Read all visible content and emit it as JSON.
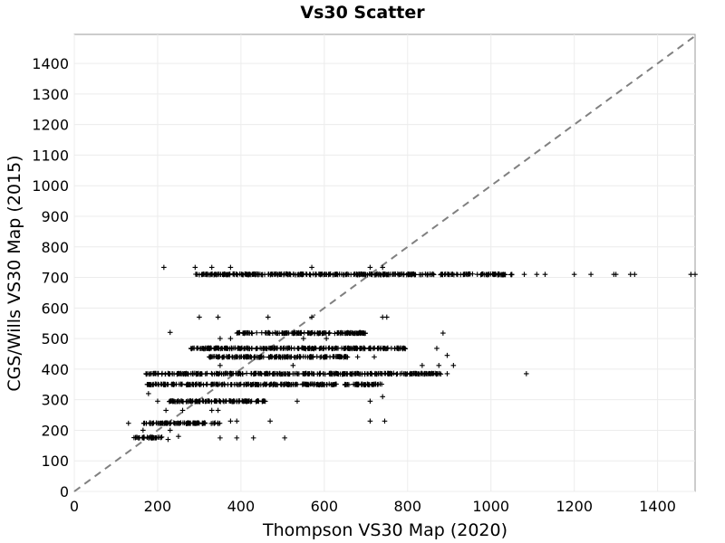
{
  "chart_data": {
    "type": "scatter",
    "title": "Vs30 Scatter",
    "xlabel": "Thompson VS30 Map (2020)",
    "ylabel": "CGS/Wills VS30 Map (2015)",
    "xlim": [
      0,
      1490
    ],
    "ylim": [
      0,
      1495
    ],
    "xticks": [
      0,
      200,
      400,
      600,
      800,
      1000,
      1200,
      1400
    ],
    "yticks": [
      0,
      100,
      200,
      300,
      400,
      500,
      600,
      700,
      800,
      900,
      1000,
      1100,
      1200,
      1300,
      1400
    ],
    "grid": true,
    "marker": "+",
    "reference_line": "1:1 dashed",
    "bands": [
      {
        "y": 176,
        "x_from": 135,
        "x_to": 210
      },
      {
        "y": 223,
        "x_from": 165,
        "x_to": 350
      },
      {
        "y": 295,
        "x_from": 225,
        "x_to": 460
      },
      {
        "y": 350,
        "x_from": 175,
        "x_to": 740
      },
      {
        "y": 385,
        "x_from": 170,
        "x_to": 880
      },
      {
        "y": 440,
        "x_from": 320,
        "x_to": 660
      },
      {
        "y": 468,
        "x_from": 280,
        "x_to": 800
      },
      {
        "y": 518,
        "x_from": 385,
        "x_to": 700
      },
      {
        "y": 710,
        "x_from": 290,
        "x_to": 1050
      }
    ],
    "points": [
      [
        215,
        733
      ],
      [
        290,
        733
      ],
      [
        330,
        733
      ],
      [
        375,
        733
      ],
      [
        570,
        733
      ],
      [
        710,
        733
      ],
      [
        740,
        733
      ],
      [
        1050,
        710
      ],
      [
        1080,
        710
      ],
      [
        1110,
        710
      ],
      [
        1130,
        710
      ],
      [
        1200,
        710
      ],
      [
        1240,
        710
      ],
      [
        1295,
        710
      ],
      [
        1300,
        710
      ],
      [
        1335,
        710
      ],
      [
        1345,
        710
      ],
      [
        1480,
        710
      ],
      [
        1490,
        710
      ],
      [
        300,
        570
      ],
      [
        345,
        570
      ],
      [
        465,
        570
      ],
      [
        570,
        570
      ],
      [
        740,
        570
      ],
      [
        750,
        570
      ],
      [
        230,
        520
      ],
      [
        885,
        518
      ],
      [
        350,
        500
      ],
      [
        375,
        500
      ],
      [
        550,
        500
      ],
      [
        605,
        500
      ],
      [
        350,
        412
      ],
      [
        525,
        412
      ],
      [
        835,
        412
      ],
      [
        875,
        412
      ],
      [
        910,
        412
      ],
      [
        1085,
        385
      ],
      [
        870,
        468
      ],
      [
        895,
        445
      ],
      [
        680,
        440
      ],
      [
        720,
        440
      ],
      [
        870,
        385
      ],
      [
        895,
        385
      ],
      [
        860,
        385
      ],
      [
        200,
        295
      ],
      [
        220,
        265
      ],
      [
        260,
        265
      ],
      [
        330,
        265
      ],
      [
        345,
        265
      ],
      [
        535,
        295
      ],
      [
        710,
        295
      ],
      [
        740,
        310
      ],
      [
        130,
        223
      ],
      [
        165,
        200
      ],
      [
        230,
        200
      ],
      [
        390,
        230
      ],
      [
        470,
        230
      ],
      [
        710,
        230
      ],
      [
        745,
        230
      ],
      [
        375,
        230
      ],
      [
        175,
        350
      ],
      [
        178,
        320
      ],
      [
        250,
        180
      ],
      [
        350,
        175
      ],
      [
        390,
        175
      ],
      [
        430,
        175
      ],
      [
        505,
        175
      ],
      [
        225,
        170
      ],
      [
        210,
        178
      ],
      [
        165,
        176
      ]
    ]
  }
}
